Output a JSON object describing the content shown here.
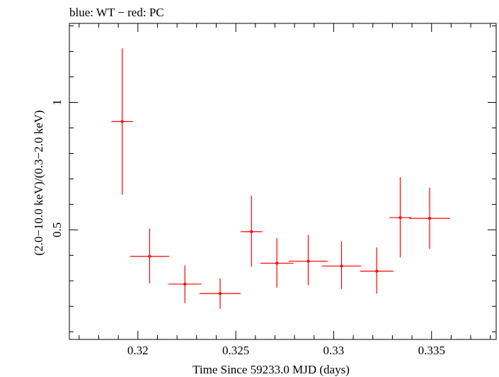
{
  "chart_data": {
    "type": "scatter",
    "title": "blue: WT − red: PC",
    "xlabel": "Time Since 59233.0 MJD (days)",
    "ylabel": "(2.0−10.0 keV)/(0.3−2.0 keV)",
    "xlim": [
      0.3165,
      0.3383
    ],
    "ylim": [
      0.07,
      1.31
    ],
    "x_ticks": [
      {
        "value": 0.32,
        "label": "0.32"
      },
      {
        "value": 0.325,
        "label": "0.325"
      },
      {
        "value": 0.33,
        "label": "0.33"
      },
      {
        "value": 0.335,
        "label": "0.335"
      }
    ],
    "y_ticks": [
      {
        "value": 0.5,
        "label": "0.5"
      },
      {
        "value": 1.0,
        "label": "1"
      }
    ],
    "x_minor_step": 0.001,
    "y_minor_step": 0.1,
    "series": [
      {
        "color": "#ff0000",
        "points": [
          {
            "x": 0.3192,
            "xerr": 0.00055,
            "y": 0.925,
            "ylo": 0.638,
            "yhi": 1.212
          },
          {
            "x": 0.3206,
            "xerr": 0.001,
            "y": 0.396,
            "ylo": 0.29,
            "yhi": 0.505
          },
          {
            "x": 0.3224,
            "xerr": 0.00085,
            "y": 0.287,
            "ylo": 0.213,
            "yhi": 0.36
          },
          {
            "x": 0.3242,
            "xerr": 0.00105,
            "y": 0.25,
            "ylo": 0.19,
            "yhi": 0.31
          },
          {
            "x": 0.3258,
            "xerr": 0.00055,
            "y": 0.493,
            "ylo": 0.355,
            "yhi": 0.634
          },
          {
            "x": 0.3271,
            "xerr": 0.00085,
            "y": 0.369,
            "ylo": 0.273,
            "yhi": 0.468
          },
          {
            "x": 0.3287,
            "xerr": 0.001,
            "y": 0.377,
            "ylo": 0.283,
            "yhi": 0.48
          },
          {
            "x": 0.3304,
            "xerr": 0.001,
            "y": 0.358,
            "ylo": 0.268,
            "yhi": 0.455
          },
          {
            "x": 0.3322,
            "xerr": 0.00085,
            "y": 0.338,
            "ylo": 0.25,
            "yhi": 0.431
          },
          {
            "x": 0.3334,
            "xerr": 0.00055,
            "y": 0.548,
            "ylo": 0.392,
            "yhi": 0.707
          },
          {
            "x": 0.3349,
            "xerr": 0.00105,
            "y": 0.545,
            "ylo": 0.425,
            "yhi": 0.665
          }
        ]
      }
    ]
  }
}
